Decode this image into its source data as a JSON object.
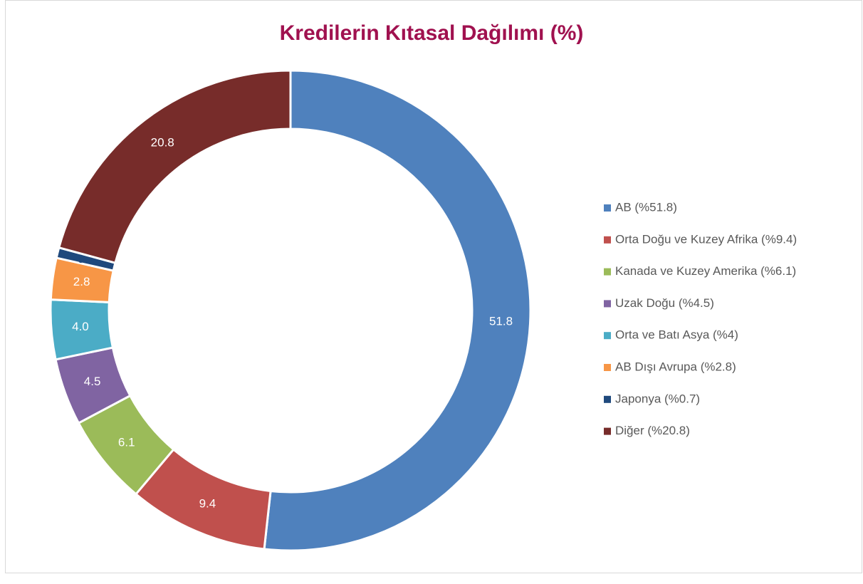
{
  "chart_data": {
    "type": "pie",
    "donut": true,
    "title": "Kredilerin Kıtasal Dağılımı (%)",
    "categories": [
      "AB (%51.8)",
      "Orta Doğu ve Kuzey Afrika (%9.4)",
      "Kanada ve Kuzey Amerika (%6.1)",
      "Uzak Doğu (%4.5)",
      "Orta ve Batı Asya (%4)",
      "AB Dışı Avrupa (%2.8)",
      "Japonya (%0.7)",
      "Diğer (%20.8)"
    ],
    "values": [
      51.8,
      9.4,
      6.1,
      4.5,
      4.0,
      2.8,
      0.7,
      20.8
    ],
    "value_labels": [
      "51.8",
      "9.4",
      "6.1",
      "4.5",
      "4.0",
      "2.8",
      "0.7",
      "20.8"
    ],
    "colors": [
      "#4f81bd",
      "#c0504d",
      "#9bbb59",
      "#8064a2",
      "#4bacc6",
      "#f79646",
      "#1f497d",
      "#772c2a"
    ],
    "legend": "right"
  }
}
